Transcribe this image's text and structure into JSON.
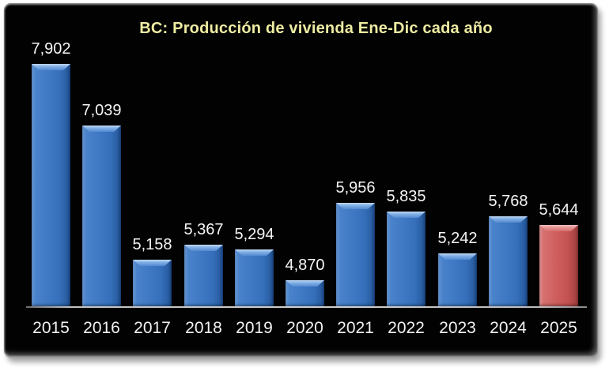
{
  "chart_data": {
    "type": "bar",
    "title": "BC: Producción de vivienda Ene-Dic cada año",
    "categories": [
      "2015",
      "2016",
      "2017",
      "2018",
      "2019",
      "2020",
      "2021",
      "2022",
      "2023",
      "2024",
      "2025"
    ],
    "values": [
      7902,
      7039,
      5158,
      5367,
      5294,
      4870,
      5956,
      5835,
      5242,
      5768,
      5644
    ],
    "value_labels": [
      "7,902",
      "7,039",
      "5,158",
      "5,367",
      "5,294",
      "4,870",
      "5,956",
      "5,835",
      "5,242",
      "5,768",
      "5,644"
    ],
    "xlabel": "",
    "ylabel": "",
    "ylim": [
      4500,
      7950
    ],
    "grid": false,
    "legend": null,
    "highlight_index": 10,
    "colors": {
      "bar_default": "#3e77c2",
      "bar_highlight": "#cd5c5c",
      "panel_background": "#020202",
      "page_background": "#ffffff",
      "title_text": "#eeeca2",
      "value_text": "#f5f5f5",
      "axis_text": "#f2f2f2",
      "axis_line": "#bdbdbd"
    }
  }
}
